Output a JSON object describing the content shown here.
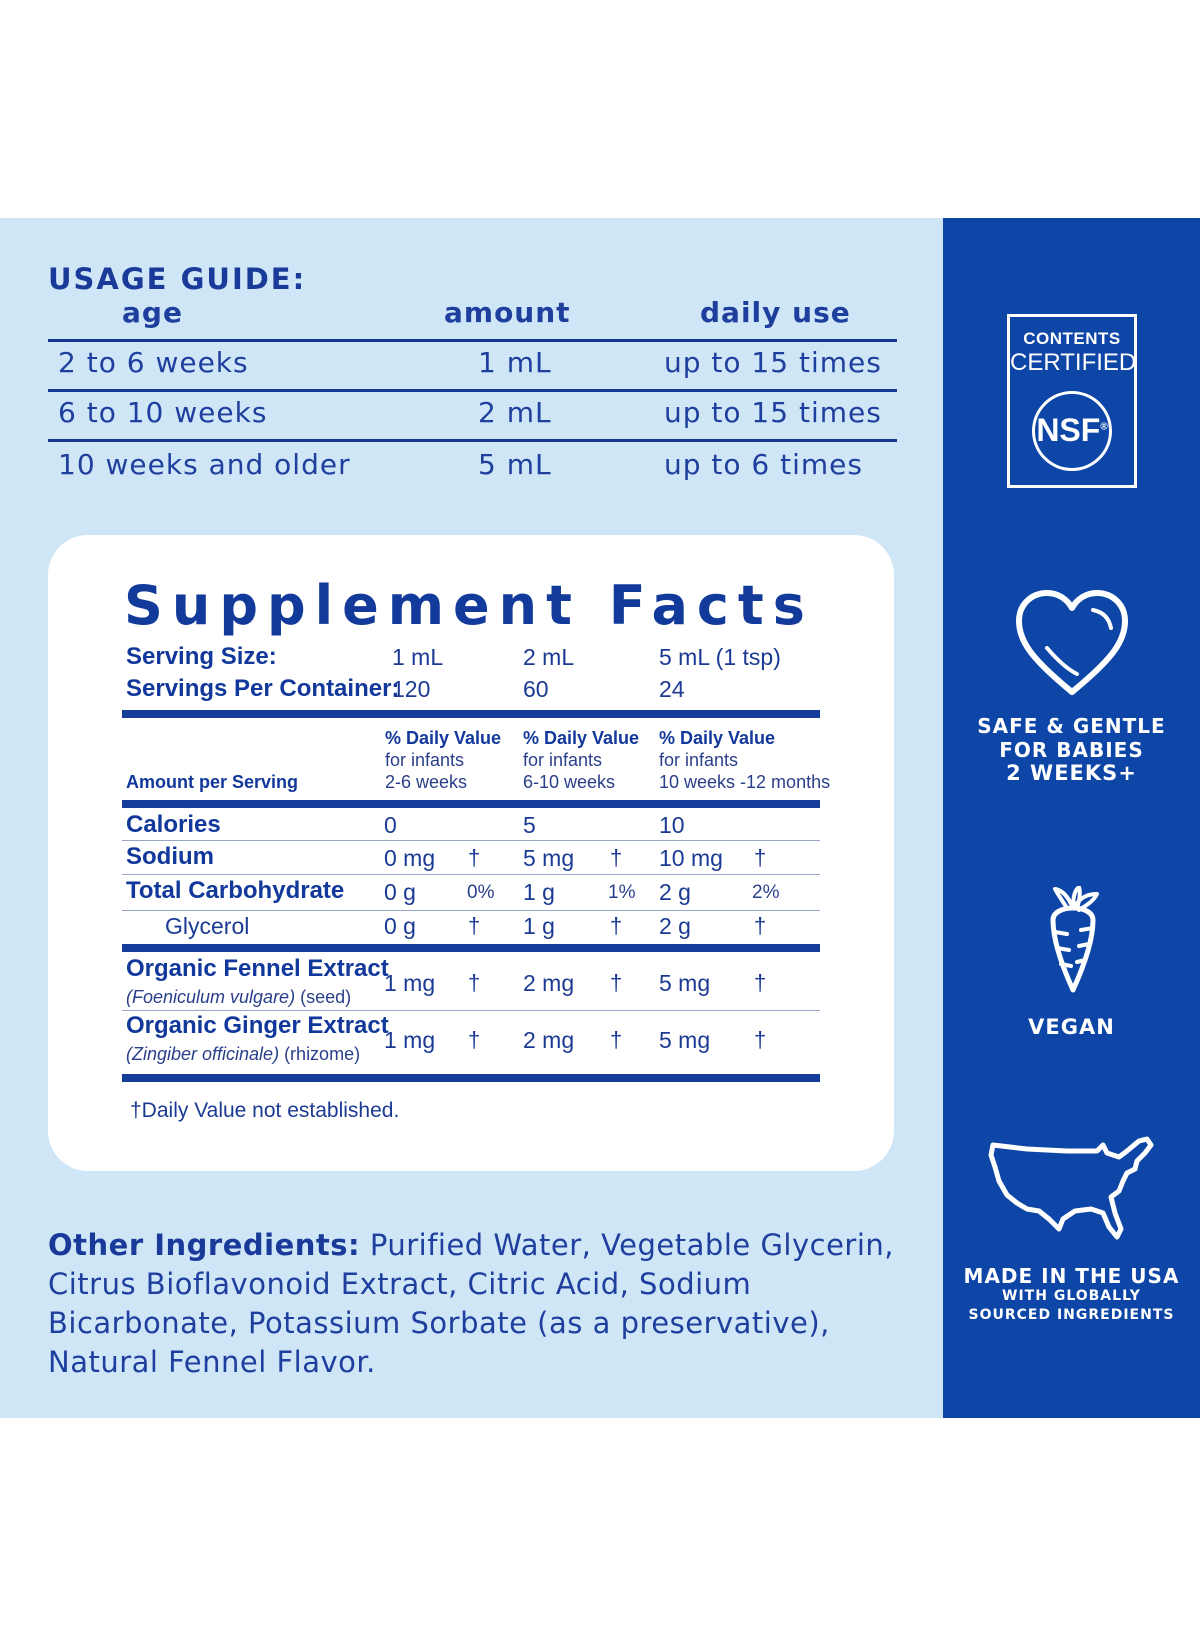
{
  "usage_guide": {
    "title": "USAGE GUIDE:",
    "headers": {
      "age": "age",
      "amount": "amount",
      "daily": "daily use"
    },
    "rows": [
      {
        "age": "2 to 6 weeks",
        "amount": "1 mL",
        "daily": "up to 15 times"
      },
      {
        "age": "6 to 10 weeks",
        "amount": "2 mL",
        "daily": "up to 15 times"
      },
      {
        "age": "10 weeks and older",
        "amount": "5 mL",
        "daily": "up to 6 times"
      }
    ]
  },
  "facts": {
    "title": "Supplement Facts",
    "serving_size_label": "Serving Size:",
    "serving_sizes": [
      "1 mL",
      "2 mL",
      "5 mL (1 tsp)"
    ],
    "servings_label": "Servings Per Container:",
    "servings": [
      "120",
      "60",
      "24"
    ],
    "amount_label": "Amount per Serving",
    "dv_cols": [
      {
        "head": "% Daily Value",
        "line1": "for infants",
        "line2": "2-6 weeks"
      },
      {
        "head": "% Daily Value",
        "line1": "for infants",
        "line2": "6-10 weeks"
      },
      {
        "head": "% Daily Value",
        "line1": "for infants",
        "line2": "10 weeks -12 months"
      }
    ],
    "calories": {
      "label": "Calories",
      "v": [
        "0",
        "5",
        "10"
      ]
    },
    "sodium": {
      "label": "Sodium",
      "v": [
        "0 mg",
        "5 mg",
        "10 mg"
      ],
      "d": [
        "†",
        "†",
        "†"
      ]
    },
    "carb": {
      "label": "Total Carbohydrate",
      "v": [
        "0 g",
        "1 g",
        "2 g"
      ],
      "p": [
        "0%",
        "1%",
        "2%"
      ]
    },
    "glycerol": {
      "label": "Glycerol",
      "v": [
        "0 g",
        "1 g",
        "2 g"
      ],
      "d": [
        "†",
        "†",
        "†"
      ]
    },
    "fennel": {
      "label": "Organic Fennel Extract",
      "sub_italic": "(Foeniculum vulgare)",
      "sub": " (seed)",
      "v": [
        "1 mg",
        "2 mg",
        "5 mg"
      ],
      "d": [
        "†",
        "†",
        "†"
      ]
    },
    "ginger": {
      "label": "Organic Ginger Extract",
      "sub_italic": "(Zingiber officinale)",
      "sub": " (rhizome)",
      "v": [
        "1 mg",
        "2 mg",
        "5 mg"
      ],
      "d": [
        "†",
        "†",
        "†"
      ]
    },
    "footnote": "†Daily Value not established."
  },
  "other_ingredients": {
    "label": "Other Ingredients:",
    "text": " Purified Water, Vegetable Glycerin, Citrus Bioflavonoid Extract, Citric Acid, Sodium Bicarbonate, Potassium Sorbate (as a preservative), Natural Fennel Flavor."
  },
  "badges": {
    "nsf": {
      "line1": "CONTENTS",
      "line2": "CERTIFIED",
      "logo": "NSF",
      "reg": "®"
    },
    "safe": {
      "line1": "SAFE & GENTLE",
      "line2": "FOR BABIES",
      "line3": "2 WEEKS+",
      "icon": "heart-icon"
    },
    "vegan": {
      "label": "VEGAN",
      "icon": "carrot-icon"
    },
    "usa": {
      "line1": "MADE IN THE USA",
      "line2": "WITH GLOBALLY",
      "line3": "SOURCED INGREDIENTS",
      "icon": "usa-map-icon"
    }
  }
}
